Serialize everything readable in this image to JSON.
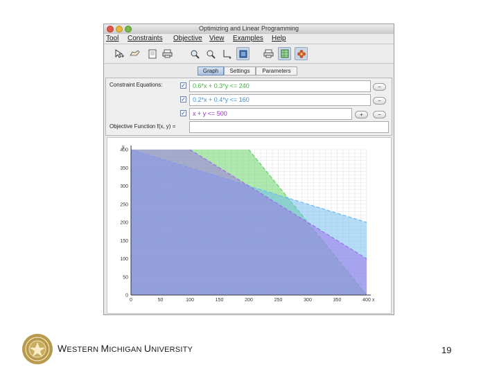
{
  "window": {
    "title": "Optimizing and Linear Programming"
  },
  "menu": [
    "Tool",
    "Constraints",
    "Objective",
    "View",
    "Examples",
    "Help"
  ],
  "toolbar_icons": [
    "cursor-plus-icon",
    "hand-icon",
    "page-icon",
    "print-icon",
    "zoom-in-icon",
    "zoom-out-icon",
    "axes-icon",
    "window-icon",
    "print-icon-2",
    "grid-image-icon",
    "flower-icon"
  ],
  "tabs": [
    "Graph",
    "Settings",
    "Parameters"
  ],
  "constraints_label": "Constraint Equations:",
  "constraints": [
    {
      "text": "0.6*x + 0.3*y <= 240",
      "color": "#3ab53a"
    },
    {
      "text": "0.2*x + 0.4*y <= 160",
      "color": "#3b8fd8"
    },
    {
      "text": "x + y <= 500",
      "color": "#9a2fc8"
    }
  ],
  "buttons": {
    "minus": "−",
    "plus": "+"
  },
  "objective_label": "Objective Function f(x, y) =",
  "objective_value": "",
  "chart_data": {
    "type": "area",
    "xlabel": "x",
    "ylabel": "y",
    "xlim": [
      0,
      400
    ],
    "ylim": [
      0,
      400
    ],
    "xticks": [
      0,
      50,
      100,
      150,
      200,
      250,
      300,
      350,
      400
    ],
    "yticks": [
      0,
      50,
      100,
      150,
      200,
      250,
      300,
      350,
      400
    ],
    "grid": true,
    "series": [
      {
        "equation": "0.6*x + 0.3*y <= 240",
        "color": "#5fd45f",
        "boundary": [
          [
            200,
            400
          ],
          [
            400,
            0
          ]
        ]
      },
      {
        "equation": "0.2*x + 0.4*y <= 160",
        "color": "#6bbcf2",
        "boundary": [
          [
            0,
            400
          ],
          [
            400,
            200
          ]
        ]
      },
      {
        "equation": "x + y <= 500",
        "color": "#9b6ee8",
        "boundary": [
          [
            100,
            400
          ],
          [
            400,
            100
          ]
        ]
      }
    ]
  },
  "footer": {
    "university_w": "W",
    "university_estern": "ESTERN ",
    "university_m": "M",
    "university_ichigan": "ICHIGAN ",
    "university_u": "U",
    "university_niversity": "NIVERSITY",
    "page_number": "19"
  }
}
